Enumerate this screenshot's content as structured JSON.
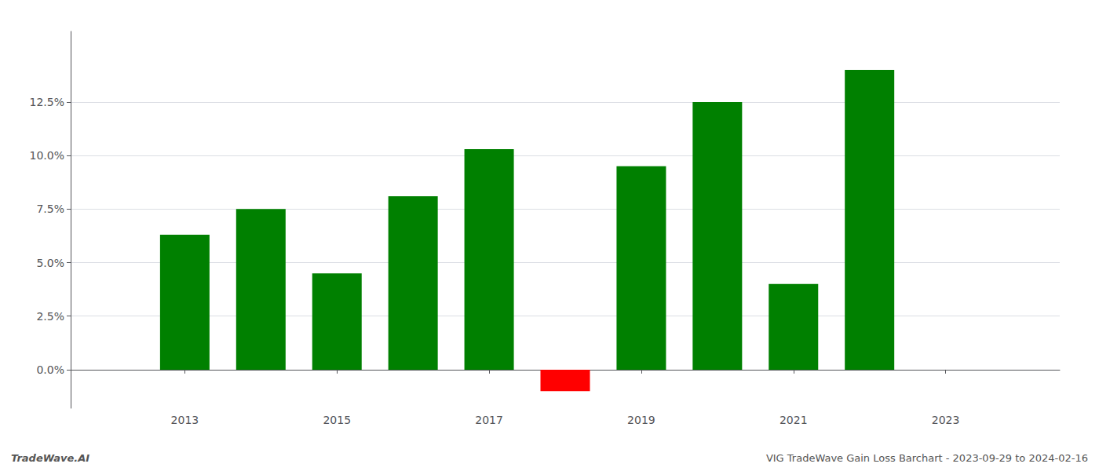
{
  "chart_data": {
    "type": "bar",
    "annotations": [
      "TradeWave.AI",
      "VIG TradeWave Gain Loss Barchart - 2023-09-29 to 2024-02-16"
    ],
    "x": [
      2013,
      2014,
      2015,
      2016,
      2017,
      2018,
      2019,
      2020,
      2021,
      2022
    ],
    "values": [
      0.063,
      0.075,
      0.045,
      0.081,
      0.103,
      -0.01,
      0.095,
      0.125,
      0.04,
      0.14
    ],
    "colors": [
      "#008000",
      "#008000",
      "#008000",
      "#008000",
      "#008000",
      "#ff0000",
      "#008000",
      "#008000",
      "#008000",
      "#008000"
    ],
    "xlim": [
      2011.5,
      2024.5
    ],
    "xticks": [
      2013,
      2015,
      2017,
      2019,
      2021,
      2023
    ],
    "ylim": [
      -0.018,
      0.158
    ],
    "yticks": [
      {
        "value": 0.0,
        "label": "0.0%"
      },
      {
        "value": 0.025,
        "label": "2.5%"
      },
      {
        "value": 0.05,
        "label": "5.0%"
      },
      {
        "value": 0.075,
        "label": "7.5%"
      },
      {
        "value": 0.1,
        "label": "10.0%"
      },
      {
        "value": 0.125,
        "label": "12.5%"
      }
    ],
    "grid": true
  }
}
